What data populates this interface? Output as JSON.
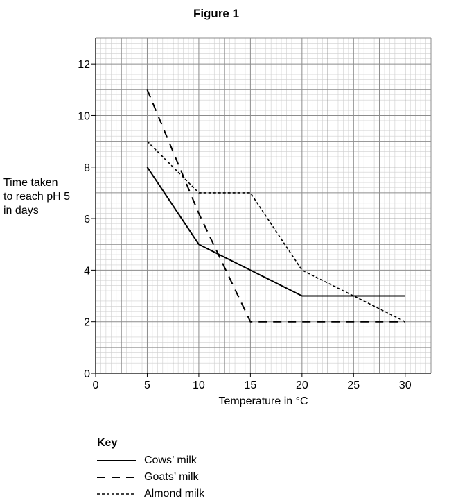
{
  "title": "Figure 1",
  "chart_data": {
    "type": "line",
    "xlabel": "Temperature in °C",
    "ylabel": [
      "Time taken",
      "to reach pH 5",
      "in days"
    ],
    "xlim": [
      0,
      32.5
    ],
    "ylim": [
      0,
      13
    ],
    "xticks": [
      0,
      5,
      10,
      15,
      20,
      25,
      30
    ],
    "yticks": [
      0,
      2,
      4,
      6,
      8,
      10,
      12
    ],
    "grid": true,
    "legend_position": "bottom-left",
    "series": [
      {
        "name": "Cows’ milk",
        "style": "solid",
        "x": [
          5,
          10,
          15,
          20,
          30
        ],
        "y": [
          8,
          5,
          4,
          3,
          3
        ]
      },
      {
        "name": "Goats’ milk",
        "style": "dashed",
        "x": [
          5,
          10,
          15,
          20,
          30
        ],
        "y": [
          11,
          6.2,
          2,
          2,
          2
        ]
      },
      {
        "name": "Almond milk",
        "style": "dotted",
        "x": [
          5,
          10,
          15,
          20,
          30
        ],
        "y": [
          9,
          7,
          7,
          4,
          2
        ]
      }
    ]
  },
  "key": {
    "title": "Key"
  }
}
